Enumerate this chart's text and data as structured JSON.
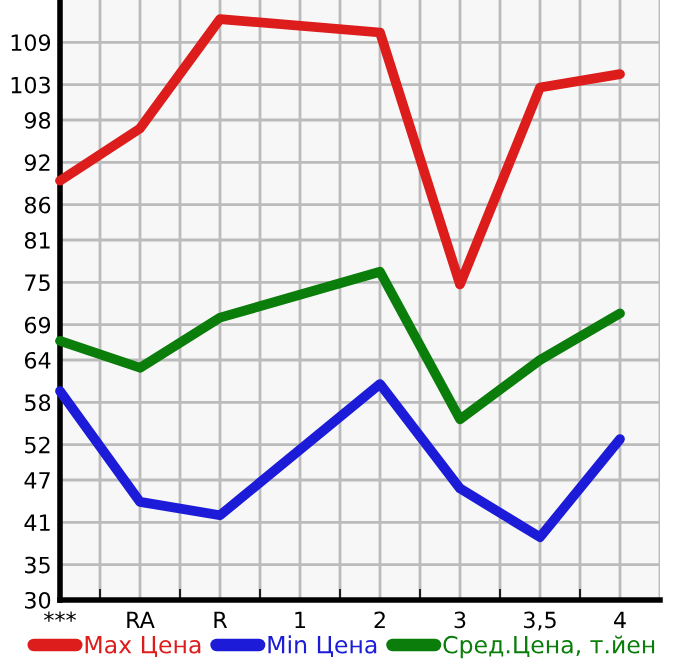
{
  "chart_data": {
    "type": "line",
    "categories": [
      "***",
      "RA",
      "R",
      "1",
      "2",
      "3",
      "3,5",
      "4"
    ],
    "series": [
      {
        "name": "Max Цена",
        "color": "#dd1c1c",
        "values": [
          89.4,
          96.8,
          112.3,
          null,
          110.4,
          74.7,
          102.6,
          104.5
        ]
      },
      {
        "name": "Min Цена",
        "color": "#1c1cd8",
        "values": [
          59.6,
          43.9,
          42.0,
          null,
          60.6,
          45.8,
          38.9,
          52.8
        ]
      },
      {
        "name": "Сред.Цена, т.йен",
        "color": "#0a7d0a",
        "values": [
          66.7,
          62.9,
          70.0,
          null,
          76.5,
          55.6,
          64.0,
          70.6
        ]
      }
    ],
    "ylim": [
      30,
      115
    ],
    "yticks": [
      30,
      35,
      41,
      47,
      52,
      58,
      64,
      69,
      75,
      81,
      86,
      92,
      98,
      103,
      109
    ],
    "grid": true,
    "legend": "bottom",
    "marker": "none",
    "line_style": "solid"
  }
}
